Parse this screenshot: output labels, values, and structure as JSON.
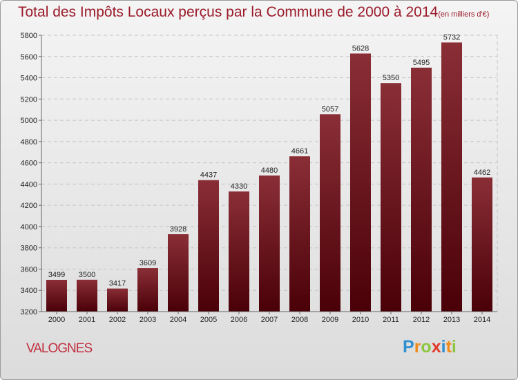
{
  "title": "Total des Impôts Locaux perçus par la Commune de 2000 à 2014",
  "unit": "(en milliers d'€)",
  "commune": "VALOGNES",
  "logo": {
    "text": "Proxiti",
    "letters": [
      {
        "ch": "P",
        "color": "#2e8fd1"
      },
      {
        "ch": "r",
        "color": "#f08a1c"
      },
      {
        "ch": "o",
        "color": "#8cc63f"
      },
      {
        "ch": "x",
        "color": "#e23a2b"
      },
      {
        "ch": "i",
        "color": "#2e8fd1"
      },
      {
        "ch": "t",
        "color": "#f08a1c"
      },
      {
        "ch": "i",
        "color": "#8cc63f"
      }
    ]
  },
  "chart_data": {
    "type": "bar",
    "title": "Total des Impôts Locaux perçus par la Commune de 2000 à 2014",
    "xlabel": "",
    "ylabel": "",
    "categories": [
      "2000",
      "2001",
      "2002",
      "2003",
      "2004",
      "2005",
      "2006",
      "2007",
      "2008",
      "2009",
      "2010",
      "2011",
      "2012",
      "2013",
      "2014"
    ],
    "values": [
      3499,
      3500,
      3417,
      3609,
      3928,
      4437,
      4330,
      4480,
      4661,
      5057,
      5628,
      5350,
      5495,
      5732,
      4462
    ],
    "ylim": [
      3200,
      5800
    ],
    "yticks": [
      3200,
      3400,
      3600,
      3800,
      4000,
      4200,
      4400,
      4600,
      4800,
      5000,
      5200,
      5400,
      5600,
      5800
    ],
    "grid": true,
    "bar_color_top": "#8a2e36",
    "bar_color_bottom": "#4a0008"
  }
}
